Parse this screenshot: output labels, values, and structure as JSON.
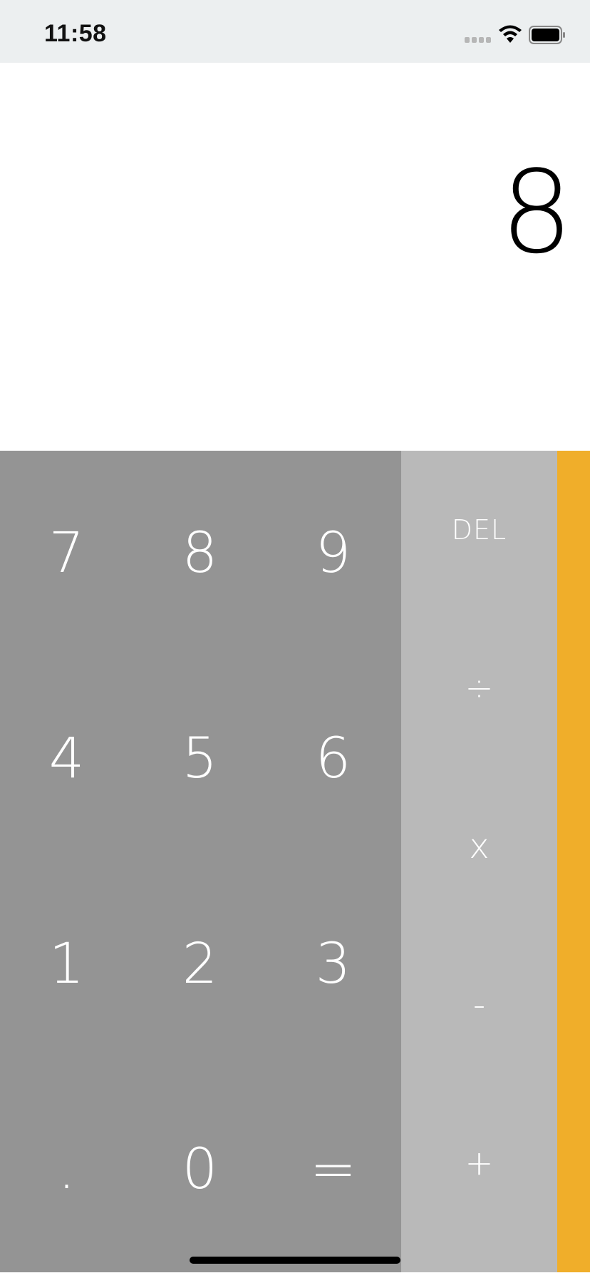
{
  "status_bar": {
    "time": "11:58"
  },
  "display": {
    "value": "8"
  },
  "keypad": {
    "rows": [
      [
        "7",
        "8",
        "9"
      ],
      [
        "4",
        "5",
        "6"
      ],
      [
        "1",
        "2",
        "3"
      ],
      [
        ".",
        "0",
        "="
      ]
    ]
  },
  "operators": {
    "del": "DEL",
    "divide": "÷",
    "multiply": "x",
    "subtract": "-",
    "add": "+"
  },
  "colors": {
    "status_bar_bg": "#eceff0",
    "keypad_bg": "#949494",
    "operators_bg": "#b9b9b9",
    "accent": "#f0ae2a"
  }
}
